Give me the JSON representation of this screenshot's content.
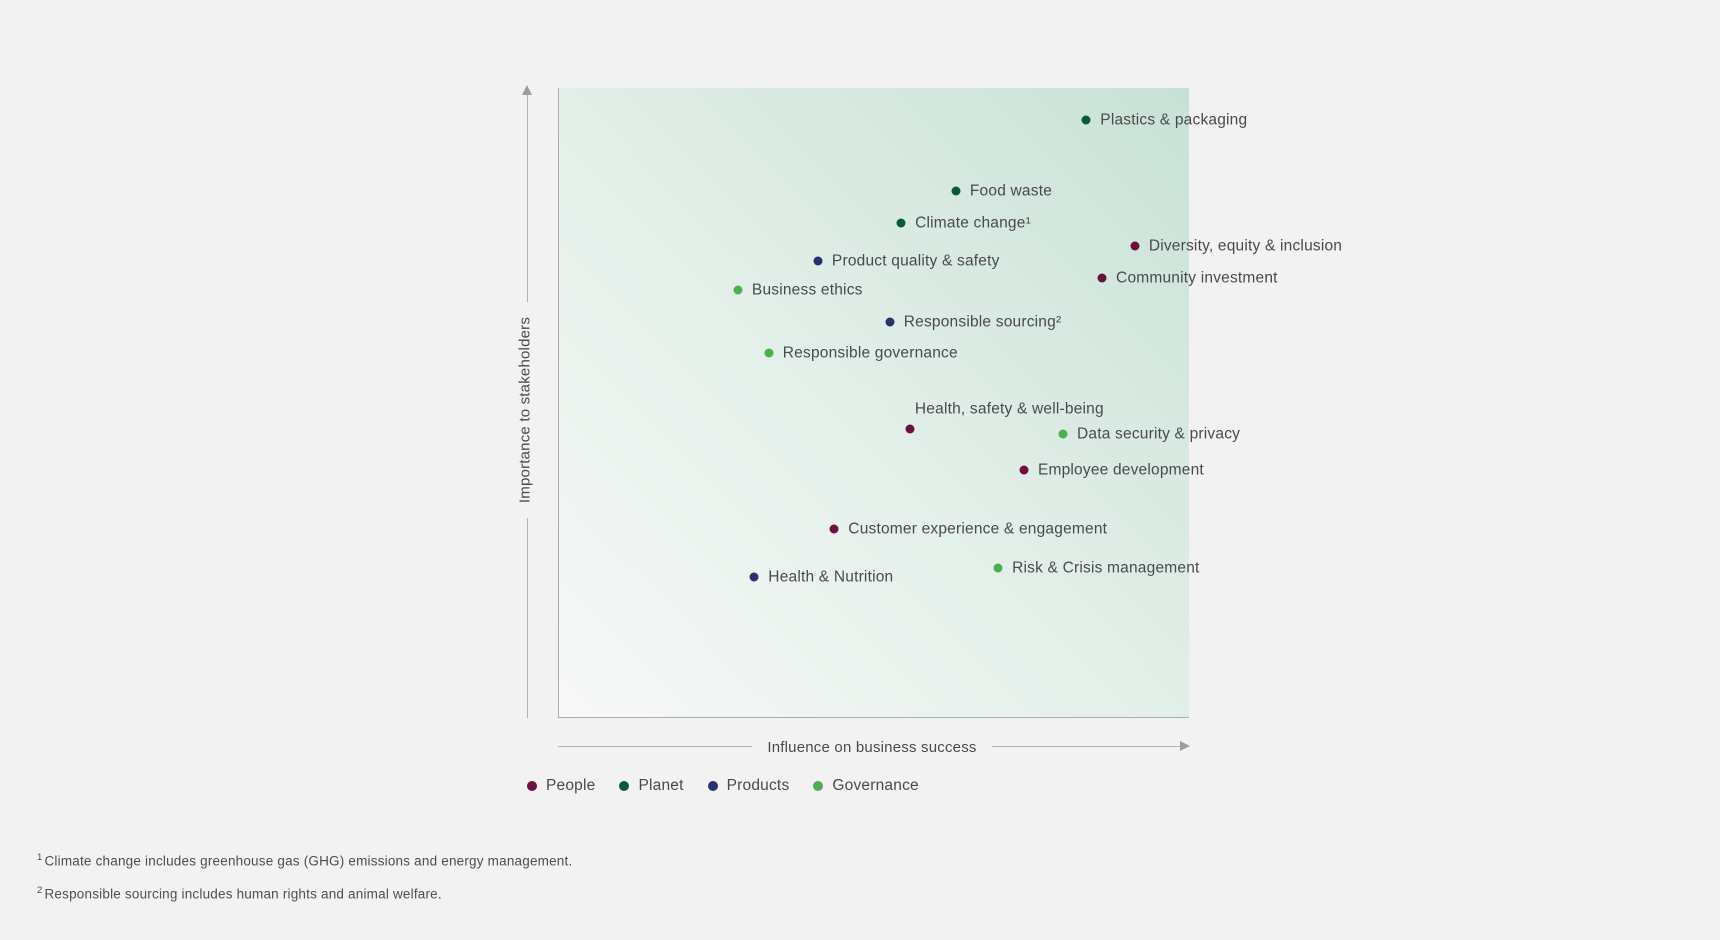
{
  "figure": {
    "page_background": "#f2f2f2",
    "plot_gradient_start": "#f8f9f8",
    "plot_gradient_end": "#c8e1d6",
    "axis_line_color": "#b2b4b3"
  },
  "chart_data": {
    "type": "scatter",
    "xlabel": "Influence on business success",
    "ylabel": "Importance to stakeholders",
    "units": "percent_of_plot_area",
    "xlim": [
      0,
      100
    ],
    "ylim": [
      0,
      100
    ],
    "grid": false,
    "axis_ticks": "none",
    "axis_style": "arrows-no-ticks",
    "legend_position": "bottom-left",
    "categories": [
      {
        "name": "People",
        "color": "#6f0f41"
      },
      {
        "name": "Planet",
        "color": "#0a5938"
      },
      {
        "name": "Products",
        "color": "#28316e"
      },
      {
        "name": "Governance",
        "color": "#4eae51"
      }
    ],
    "points": [
      {
        "label": "Plastics & packaging",
        "category": "Planet",
        "x": 83.7,
        "y": 94.9,
        "label_position": "right"
      },
      {
        "label": "Food waste",
        "category": "Planet",
        "x": 63.0,
        "y": 83.6,
        "label_position": "right"
      },
      {
        "label": "Climate change¹",
        "category": "Planet",
        "x": 54.3,
        "y": 78.5,
        "label_position": "right"
      },
      {
        "label": "Diversity, equity & inclusion",
        "category": "People",
        "x": 91.4,
        "y": 74.9,
        "label_position": "right"
      },
      {
        "label": "Product quality & safety",
        "category": "Products",
        "x": 41.1,
        "y": 72.5,
        "label_position": "right"
      },
      {
        "label": "Community investment",
        "category": "People",
        "x": 86.2,
        "y": 69.8,
        "label_position": "right"
      },
      {
        "label": "Business ethics",
        "category": "Governance",
        "x": 28.4,
        "y": 67.9,
        "label_position": "right"
      },
      {
        "label": "Responsible sourcing²",
        "category": "Products",
        "x": 52.5,
        "y": 62.8,
        "label_position": "right"
      },
      {
        "label": "Responsible governance",
        "category": "Governance",
        "x": 33.3,
        "y": 57.9,
        "label_position": "right"
      },
      {
        "label": "Health, safety & well-being",
        "category": "People",
        "x": 55.7,
        "y": 45.8,
        "label_position": "above"
      },
      {
        "label": "Data security & privacy",
        "category": "Governance",
        "x": 80.0,
        "y": 45.0,
        "label_position": "right"
      },
      {
        "label": "Employee development",
        "category": "People",
        "x": 73.8,
        "y": 39.3,
        "label_position": "right"
      },
      {
        "label": "Customer experience & engagement",
        "category": "People",
        "x": 43.7,
        "y": 29.9,
        "label_position": "right"
      },
      {
        "label": "Risk & Crisis management",
        "category": "Governance",
        "x": 69.7,
        "y": 23.7,
        "label_position": "right"
      },
      {
        "label": "Health & Nutrition",
        "category": "Products",
        "x": 31.0,
        "y": 22.3,
        "label_position": "right"
      }
    ]
  },
  "footnotes": [
    {
      "marker": "1",
      "text": "Climate change includes greenhouse gas (GHG) emissions and energy management."
    },
    {
      "marker": "2",
      "text": "Responsible sourcing includes human rights and animal welfare."
    }
  ]
}
